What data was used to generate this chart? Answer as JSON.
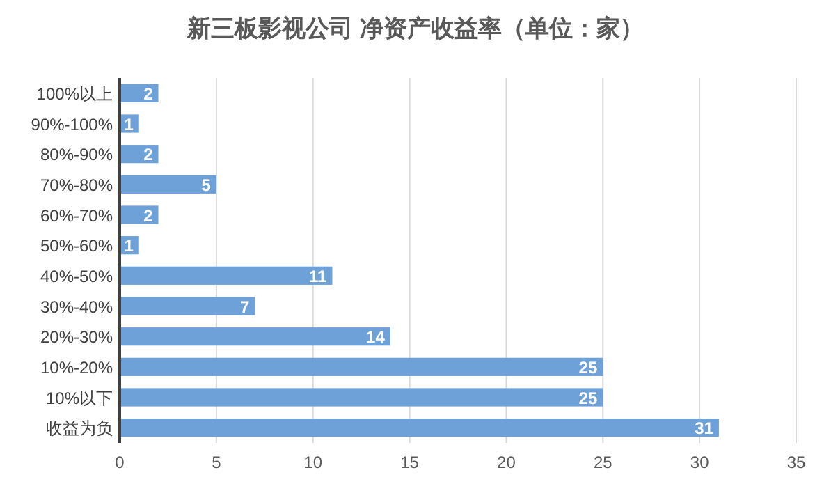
{
  "chart_data": {
    "type": "bar",
    "orientation": "horizontal",
    "title": "新三板影视公司 净资产收益率（单位：家）",
    "categories": [
      "100%以上",
      "90%-100%",
      "80%-90%",
      "70%-80%",
      "60%-70%",
      "50%-60%",
      "40%-50%",
      "30%-40%",
      "20%-30%",
      "10%-20%",
      "10%以下",
      "收益为负"
    ],
    "values": [
      2,
      1,
      2,
      5,
      2,
      1,
      11,
      7,
      14,
      25,
      25,
      31
    ],
    "color": "#6fa1d9",
    "xlim": [
      0,
      35
    ],
    "xticks": [
      0,
      5,
      10,
      15,
      20,
      25,
      30,
      35
    ],
    "grid": "x",
    "data_labels": true
  }
}
